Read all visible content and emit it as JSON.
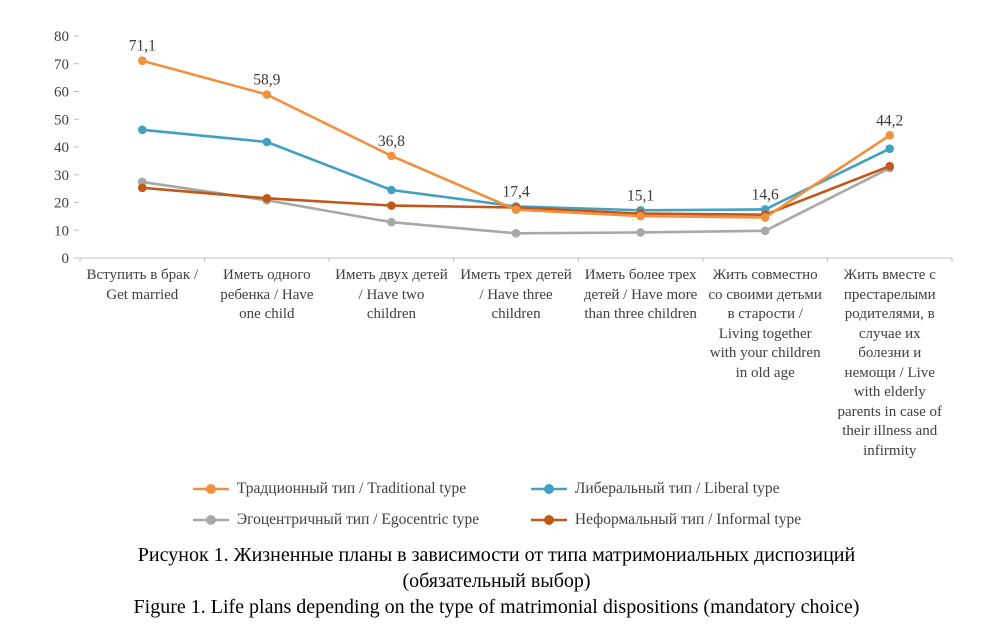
{
  "figure": {
    "caption": {
      "ru_line1": "Рисунок 1. Жизненные планы в зависимости от типа матримониальных диспозиций",
      "ru_line2": "(обязательный выбор)",
      "en_line": "Figure 1. Life plans depending on the type of matrimonial dispositions (mandatory choice)"
    }
  },
  "chart_data": {
    "type": "line",
    "title": "",
    "xlabel": "",
    "ylabel": "",
    "ylim": [
      0,
      80
    ],
    "yticks": [
      0,
      10,
      20,
      30,
      40,
      50,
      60,
      70,
      80
    ],
    "grid": false,
    "legend_position": "bottom",
    "decimal_separator": ",",
    "categories": [
      "Вступить в брак / Get married",
      "Иметь одного ребенка / Have one child",
      "Иметь двух детей / Have two children",
      "Иметь трех детей / Have three children",
      "Иметь более трех детей / Have more than three children",
      "Жить совместно со своими детьми в старости / Living together with your children in old age",
      "Жить вместе с престарелыми родителями, в случае их болезни и немощи / Live with elderly parents in case of their illness and infirmity"
    ],
    "series": [
      {
        "id": "traditional",
        "name": "Традционный тип / Traditional type",
        "color": "#F0913F",
        "values": [
          71.1,
          58.9,
          36.8,
          17.4,
          15.1,
          14.6,
          44.2
        ],
        "labels": [
          "71,1",
          "58,9",
          "36,8",
          "17,4",
          "15,1",
          "14,6",
          "44,2"
        ]
      },
      {
        "id": "liberal",
        "name": "Либеральный тип / Liberal type",
        "color": "#42A0C0",
        "values": [
          46.2,
          41.8,
          24.5,
          18.6,
          17.2,
          17.5,
          39.4
        ],
        "labels": []
      },
      {
        "id": "egocentric",
        "name": "Эгоцентричный тип / Egocentric type",
        "color": "#A8A8A8",
        "values": [
          27.4,
          20.8,
          12.9,
          8.9,
          9.2,
          9.8,
          32.4
        ],
        "labels": []
      },
      {
        "id": "informal",
        "name": "Неформальный тип / Informal type",
        "color": "#C2571A",
        "values": [
          25.3,
          21.5,
          18.9,
          18.2,
          16.0,
          15.6,
          33.1
        ],
        "labels": []
      }
    ]
  }
}
